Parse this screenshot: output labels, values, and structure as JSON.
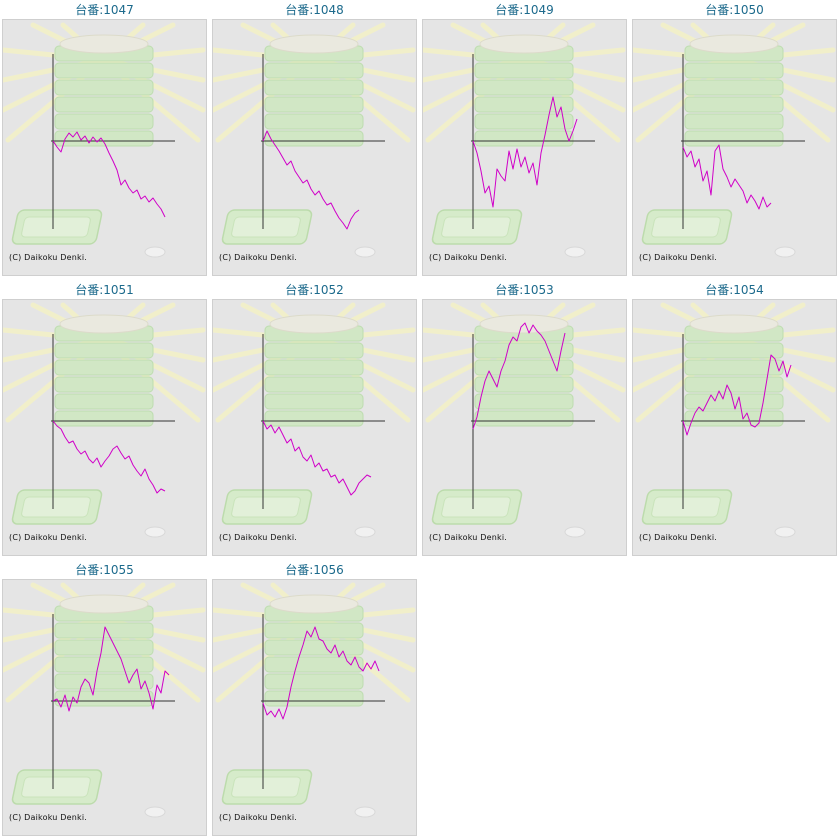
{
  "colors": {
    "line": "#d000c8",
    "axis": "#333333",
    "label": "#1c6a8c",
    "panel_bg": "#e5e5e5"
  },
  "copyright_text": "(C) Daikoku Denki.",
  "chart_data": [
    {
      "type": "line",
      "title": "台番:1047",
      "x": [
        0,
        4,
        8,
        12,
        16,
        20,
        24,
        28,
        32,
        36,
        40,
        44,
        48,
        52,
        56,
        60,
        64,
        68,
        72,
        76,
        80,
        84,
        88,
        92,
        96,
        100,
        104,
        108,
        112
      ],
      "values": [
        0,
        -6,
        -11,
        2,
        8,
        4,
        9,
        1,
        5,
        -2,
        4,
        -1,
        3,
        -3,
        -12,
        -20,
        -29,
        -44,
        -39,
        -47,
        -52,
        -49,
        -58,
        -55,
        -61,
        -57,
        -63,
        -68,
        -76
      ]
    },
    {
      "type": "line",
      "title": "台番:1048",
      "x": [
        0,
        4,
        8,
        12,
        16,
        20,
        24,
        28,
        32,
        36,
        40,
        44,
        48,
        52,
        56,
        60,
        64,
        68,
        72,
        76,
        80,
        84,
        88,
        92,
        96
      ],
      "values": [
        0,
        10,
        2,
        -4,
        -10,
        -17,
        -24,
        -20,
        -30,
        -36,
        -42,
        -39,
        -48,
        -54,
        -50,
        -58,
        -64,
        -62,
        -70,
        -77,
        -82,
        -88,
        -78,
        -72,
        -69
      ]
    },
    {
      "type": "line",
      "title": "台番:1049",
      "x": [
        0,
        4,
        8,
        12,
        16,
        20,
        24,
        28,
        32,
        36,
        40,
        44,
        48,
        52,
        56,
        60,
        64,
        68,
        72,
        76,
        80,
        84,
        88,
        92,
        96,
        100,
        104
      ],
      "values": [
        0,
        -12,
        -30,
        -52,
        -45,
        -66,
        -28,
        -35,
        -40,
        -10,
        -28,
        -8,
        -26,
        -16,
        -32,
        -22,
        -44,
        -12,
        6,
        26,
        44,
        24,
        34,
        12,
        0,
        10,
        22
      ]
    },
    {
      "type": "line",
      "title": "台番:1050",
      "x": [
        0,
        4,
        8,
        12,
        16,
        20,
        24,
        28,
        32,
        36,
        40,
        44,
        48,
        52,
        56,
        60,
        64,
        68,
        72,
        76,
        80,
        84,
        88
      ],
      "values": [
        -6,
        -16,
        -10,
        -26,
        -18,
        -40,
        -30,
        -54,
        -10,
        -4,
        -28,
        -36,
        -46,
        -38,
        -44,
        -50,
        -62,
        -54,
        -60,
        -68,
        -56,
        -66,
        -62
      ]
    },
    {
      "type": "line",
      "title": "台番:1051",
      "x": [
        0,
        4,
        8,
        12,
        16,
        20,
        24,
        28,
        32,
        36,
        40,
        44,
        48,
        52,
        56,
        60,
        64,
        68,
        72,
        76,
        80,
        84,
        88,
        92,
        96,
        100,
        104,
        108,
        112
      ],
      "values": [
        0,
        -5,
        -8,
        -16,
        -22,
        -20,
        -28,
        -33,
        -30,
        -38,
        -42,
        -37,
        -46,
        -40,
        -35,
        -28,
        -25,
        -32,
        -38,
        -35,
        -44,
        -50,
        -55,
        -48,
        -58,
        -64,
        -72,
        -68,
        -70
      ]
    },
    {
      "type": "line",
      "title": "台番:1052",
      "x": [
        0,
        4,
        8,
        12,
        16,
        20,
        24,
        28,
        32,
        36,
        40,
        44,
        48,
        52,
        56,
        60,
        64,
        68,
        72,
        76,
        80,
        84,
        88,
        92,
        96,
        100,
        104,
        108
      ],
      "values": [
        0,
        -8,
        -4,
        -12,
        -6,
        -14,
        -22,
        -18,
        -30,
        -26,
        -36,
        -40,
        -34,
        -46,
        -42,
        -50,
        -48,
        -56,
        -54,
        -62,
        -58,
        -66,
        -74,
        -70,
        -62,
        -58,
        -54,
        -56
      ]
    },
    {
      "type": "line",
      "title": "台番:1053",
      "x": [
        0,
        4,
        8,
        12,
        16,
        20,
        24,
        28,
        32,
        36,
        40,
        44,
        48,
        52,
        56,
        60,
        64,
        68,
        72,
        76,
        80,
        84,
        88,
        92
      ],
      "values": [
        -8,
        4,
        24,
        40,
        50,
        42,
        34,
        50,
        60,
        76,
        84,
        80,
        94,
        98,
        88,
        96,
        90,
        86,
        80,
        70,
        60,
        50,
        70,
        88
      ]
    },
    {
      "type": "line",
      "title": "台番:1054",
      "x": [
        0,
        4,
        8,
        12,
        16,
        20,
        24,
        28,
        32,
        36,
        40,
        44,
        48,
        52,
        56,
        60,
        64,
        68,
        72,
        76,
        80,
        84,
        88,
        92,
        96,
        100,
        104,
        108
      ],
      "values": [
        0,
        -14,
        -2,
        8,
        14,
        10,
        18,
        26,
        20,
        30,
        22,
        36,
        28,
        12,
        24,
        2,
        8,
        -4,
        -6,
        -2,
        18,
        42,
        66,
        62,
        50,
        60,
        44,
        56
      ]
    },
    {
      "type": "line",
      "title": "台番:1055",
      "x": [
        0,
        4,
        8,
        12,
        16,
        20,
        24,
        28,
        32,
        36,
        40,
        44,
        48,
        52,
        56,
        60,
        64,
        68,
        72,
        76,
        80,
        84,
        88,
        92,
        96,
        100,
        104,
        108,
        112,
        116
      ],
      "values": [
        0,
        2,
        -6,
        6,
        -10,
        4,
        -2,
        14,
        22,
        18,
        6,
        30,
        48,
        74,
        66,
        58,
        50,
        42,
        30,
        18,
        26,
        32,
        12,
        20,
        8,
        -8,
        16,
        8,
        30,
        26
      ]
    },
    {
      "type": "line",
      "title": "台番:1056",
      "x": [
        0,
        4,
        8,
        12,
        16,
        20,
        24,
        28,
        32,
        36,
        40,
        44,
        48,
        52,
        56,
        60,
        64,
        68,
        72,
        76,
        80,
        84,
        88,
        92,
        96,
        100,
        104,
        108,
        112,
        116
      ],
      "values": [
        -2,
        -14,
        -10,
        -16,
        -8,
        -18,
        -6,
        14,
        30,
        44,
        56,
        70,
        64,
        74,
        62,
        60,
        52,
        48,
        56,
        44,
        50,
        40,
        36,
        44,
        34,
        30,
        38,
        32,
        40,
        30
      ]
    }
  ]
}
